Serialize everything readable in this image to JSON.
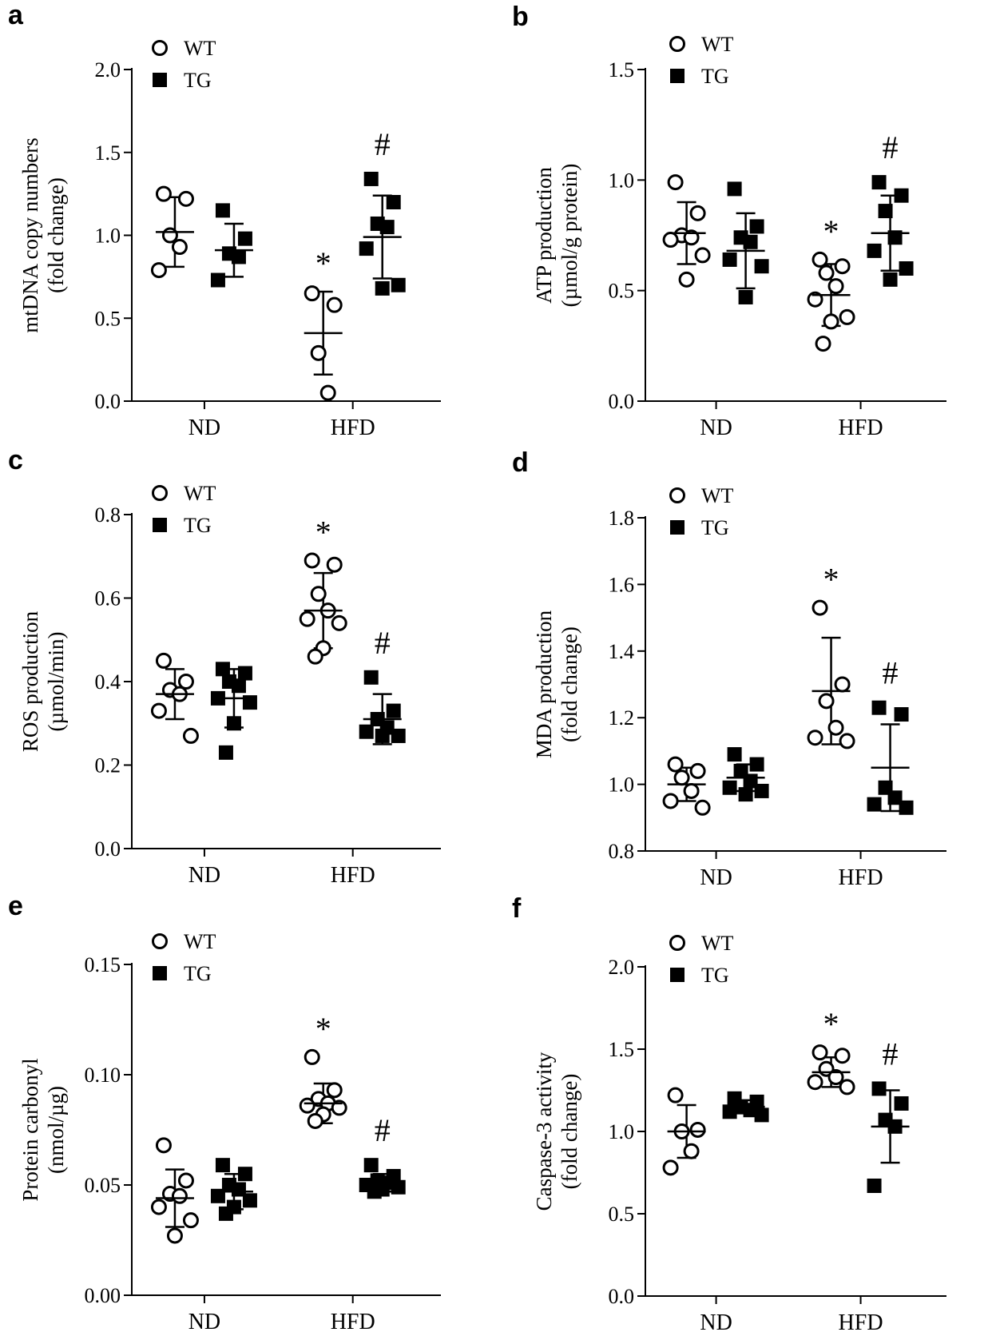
{
  "chart_data": [
    {
      "panel": "a",
      "type": "scatter",
      "ylabel_line1": "mtDNA copy numbers",
      "ylabel_line2": "(fold change)",
      "ylim": [
        0,
        2.0
      ],
      "yticks": [
        0,
        0.5,
        1.0,
        1.5,
        2.0
      ],
      "ytick_labels": [
        "0.0",
        "0.5",
        "1.0",
        "1.5",
        "2.0"
      ],
      "categories": [
        "ND",
        "HFD"
      ],
      "legend": [
        "WT",
        "TG"
      ],
      "series": [
        {
          "name": "WT",
          "marker": "open-circle",
          "groups": [
            {
              "category": "ND",
              "points": [
                1.25,
                1.22,
                1.0,
                0.93,
                0.79
              ],
              "mean": 1.02,
              "sd": 0.21
            },
            {
              "category": "HFD",
              "points": [
                0.65,
                0.58,
                0.29,
                0.05
              ],
              "mean": 0.41,
              "sd": 0.25,
              "annotation": "*"
            }
          ]
        },
        {
          "name": "TG",
          "marker": "filled-square",
          "groups": [
            {
              "category": "ND",
              "points": [
                1.15,
                0.98,
                0.89,
                0.87,
                0.73
              ],
              "mean": 0.91,
              "sd": 0.16
            },
            {
              "category": "HFD",
              "points": [
                1.34,
                1.2,
                1.07,
                1.05,
                0.92,
                0.7,
                0.68
              ],
              "mean": 0.99,
              "sd": 0.25,
              "annotation": "#"
            }
          ]
        }
      ]
    },
    {
      "panel": "b",
      "type": "scatter",
      "ylabel_line1": "ATP production",
      "ylabel_line2": "(µmol/g protein)",
      "ylim": [
        0,
        1.5
      ],
      "yticks": [
        0,
        0.5,
        1.0,
        1.5
      ],
      "ytick_labels": [
        "0.0",
        "0.5",
        "1.0",
        "1.5"
      ],
      "categories": [
        "ND",
        "HFD"
      ],
      "legend": [
        "WT",
        "TG"
      ],
      "series": [
        {
          "name": "WT",
          "marker": "open-circle",
          "groups": [
            {
              "category": "ND",
              "points": [
                0.99,
                0.85,
                0.75,
                0.74,
                0.73,
                0.66,
                0.55
              ],
              "mean": 0.76,
              "sd": 0.14
            },
            {
              "category": "HFD",
              "points": [
                0.64,
                0.61,
                0.58,
                0.52,
                0.46,
                0.38,
                0.36,
                0.26
              ],
              "mean": 0.48,
              "sd": 0.14,
              "annotation": "*"
            }
          ]
        },
        {
          "name": "TG",
          "marker": "filled-square",
          "groups": [
            {
              "category": "ND",
              "points": [
                0.96,
                0.79,
                0.74,
                0.72,
                0.64,
                0.61,
                0.47
              ],
              "mean": 0.68,
              "sd": 0.17
            },
            {
              "category": "HFD",
              "points": [
                0.99,
                0.93,
                0.86,
                0.74,
                0.68,
                0.6,
                0.55
              ],
              "mean": 0.76,
              "sd": 0.17,
              "annotation": "#"
            }
          ]
        }
      ]
    },
    {
      "panel": "c",
      "type": "scatter",
      "ylabel_line1": "ROS production",
      "ylabel_line2": "(µmol/min)",
      "ylim": [
        0,
        0.8
      ],
      "yticks": [
        0,
        0.2,
        0.4,
        0.6,
        0.8
      ],
      "ytick_labels": [
        "0.0",
        "0.2",
        "0.4",
        "0.6",
        "0.8"
      ],
      "categories": [
        "ND",
        "HFD"
      ],
      "legend": [
        "WT",
        "TG"
      ],
      "series": [
        {
          "name": "WT",
          "marker": "open-circle",
          "groups": [
            {
              "category": "ND",
              "points": [
                0.45,
                0.4,
                0.38,
                0.37,
                0.33,
                0.27
              ],
              "mean": 0.37,
              "sd": 0.06
            },
            {
              "category": "HFD",
              "points": [
                0.69,
                0.68,
                0.61,
                0.57,
                0.55,
                0.54,
                0.48,
                0.46
              ],
              "mean": 0.57,
              "sd": 0.09,
              "annotation": "*"
            }
          ]
        },
        {
          "name": "TG",
          "marker": "filled-square",
          "groups": [
            {
              "category": "ND",
              "points": [
                0.43,
                0.42,
                0.4,
                0.39,
                0.36,
                0.35,
                0.3,
                0.23
              ],
              "mean": 0.36,
              "sd": 0.07
            },
            {
              "category": "HFD",
              "points": [
                0.41,
                0.33,
                0.31,
                0.29,
                0.28,
                0.27,
                0.27
              ],
              "mean": 0.31,
              "sd": 0.06,
              "annotation": "#"
            }
          ]
        }
      ]
    },
    {
      "panel": "d",
      "type": "scatter",
      "ylabel_line1": "MDA production",
      "ylabel_line2": "(fold change)",
      "ylim": [
        0.8,
        1.8
      ],
      "yticks": [
        0.8,
        1.0,
        1.2,
        1.4,
        1.6,
        1.8
      ],
      "ytick_labels": [
        "0.8",
        "1.0",
        "1.2",
        "1.4",
        "1.6",
        "1.8"
      ],
      "categories": [
        "ND",
        "HFD"
      ],
      "legend": [
        "WT",
        "TG"
      ],
      "series": [
        {
          "name": "WT",
          "marker": "open-circle",
          "groups": [
            {
              "category": "ND",
              "points": [
                1.06,
                1.04,
                1.02,
                0.98,
                0.95,
                0.93
              ],
              "mean": 1.0,
              "sd": 0.05
            },
            {
              "category": "HFD",
              "points": [
                1.53,
                1.3,
                1.25,
                1.17,
                1.14,
                1.13
              ],
              "mean": 1.28,
              "sd": 0.16,
              "annotation": "*"
            }
          ]
        },
        {
          "name": "TG",
          "marker": "filled-square",
          "groups": [
            {
              "category": "ND",
              "points": [
                1.09,
                1.06,
                1.04,
                1.01,
                0.99,
                0.98,
                0.97
              ],
              "mean": 1.02,
              "sd": 0.04
            },
            {
              "category": "HFD",
              "points": [
                1.23,
                1.21,
                0.99,
                0.96,
                0.94,
                0.93
              ],
              "mean": 1.05,
              "sd": 0.13,
              "annotation": "#"
            }
          ]
        }
      ]
    },
    {
      "panel": "e",
      "type": "scatter",
      "ylabel_line1": "Protein carbonyl",
      "ylabel_line2": "(nmol/µg)",
      "ylim": [
        0,
        0.15
      ],
      "yticks": [
        0,
        0.05,
        0.1,
        0.15
      ],
      "ytick_labels": [
        "0.00",
        "0.05",
        "0.10",
        "0.15"
      ],
      "categories": [
        "ND",
        "HFD"
      ],
      "legend": [
        "WT",
        "TG"
      ],
      "series": [
        {
          "name": "WT",
          "marker": "open-circle",
          "groups": [
            {
              "category": "ND",
              "points": [
                0.068,
                0.052,
                0.046,
                0.045,
                0.04,
                0.034,
                0.027
              ],
              "mean": 0.044,
              "sd": 0.013
            },
            {
              "category": "HFD",
              "points": [
                0.108,
                0.093,
                0.089,
                0.087,
                0.086,
                0.085,
                0.082,
                0.079
              ],
              "mean": 0.087,
              "sd": 0.009,
              "annotation": "*"
            }
          ]
        },
        {
          "name": "TG",
          "marker": "filled-square",
          "groups": [
            {
              "category": "ND",
              "points": [
                0.059,
                0.055,
                0.05,
                0.048,
                0.045,
                0.043,
                0.04,
                0.037
              ],
              "mean": 0.047,
              "sd": 0.008
            },
            {
              "category": "HFD",
              "points": [
                0.059,
                0.054,
                0.052,
                0.051,
                0.05,
                0.049,
                0.048,
                0.047
              ],
              "mean": 0.051,
              "sd": 0.004,
              "annotation": "#"
            }
          ]
        }
      ]
    },
    {
      "panel": "f",
      "type": "scatter",
      "ylabel_line1": "Caspase-3 activity",
      "ylabel_line2": "(fold change)",
      "ylim": [
        0,
        2.0
      ],
      "yticks": [
        0,
        0.5,
        1.0,
        1.5,
        2.0
      ],
      "ytick_labels": [
        "0.0",
        "0.5",
        "1.0",
        "1.5",
        "2.0"
      ],
      "categories": [
        "ND",
        "HFD"
      ],
      "legend": [
        "WT",
        "TG"
      ],
      "series": [
        {
          "name": "WT",
          "marker": "open-circle",
          "groups": [
            {
              "category": "ND",
              "points": [
                1.22,
                1.01,
                1.0,
                0.88,
                0.78
              ],
              "mean": 1.0,
              "sd": 0.16
            },
            {
              "category": "HFD",
              "points": [
                1.48,
                1.46,
                1.38,
                1.33,
                1.3,
                1.27
              ],
              "mean": 1.36,
              "sd": 0.09,
              "annotation": "*"
            }
          ]
        },
        {
          "name": "TG",
          "marker": "filled-square",
          "groups": [
            {
              "category": "ND",
              "points": [
                1.2,
                1.18,
                1.15,
                1.13,
                1.12,
                1.1
              ],
              "mean": 1.15,
              "sd": 0.04
            },
            {
              "category": "HFD",
              "points": [
                1.26,
                1.17,
                1.07,
                1.03,
                0.67
              ],
              "mean": 1.03,
              "sd": 0.22,
              "annotation": "#"
            }
          ]
        }
      ]
    }
  ]
}
